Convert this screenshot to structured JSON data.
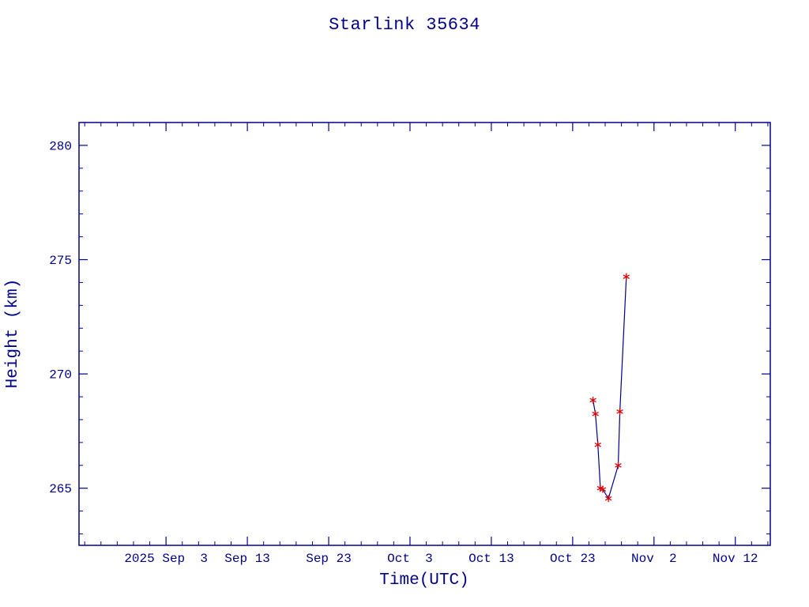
{
  "colors": {
    "background": "#ffffff",
    "axis": "#00008b",
    "text": "#00008b",
    "line": "#00008b",
    "marker": "#dd0000"
  },
  "chart_data": {
    "type": "line",
    "title": "Starlink 35634",
    "xlabel": "Time(UTC)",
    "ylabel": "Height (km)",
    "x_axis_unit": "days relative to first labeled tick (2025 Sep 3)",
    "xlim": [
      -10.7,
      74.3
    ],
    "ylim": [
      262.5,
      281.0
    ],
    "grid": false,
    "legend": false,
    "x_ticks": {
      "minor_step": 2,
      "major": [
        {
          "day": 0,
          "label": "2025 Sep  3"
        },
        {
          "day": 10,
          "label": "Sep 13"
        },
        {
          "day": 20,
          "label": "Sep 23"
        },
        {
          "day": 30,
          "label": "Oct  3"
        },
        {
          "day": 40,
          "label": "Oct 13"
        },
        {
          "day": 50,
          "label": "Oct 23"
        },
        {
          "day": 60,
          "label": "Nov  2"
        },
        {
          "day": 70,
          "label": "Nov 12"
        }
      ]
    },
    "y_ticks": {
      "minor_step": 1,
      "major": [
        {
          "value": 265,
          "label": "265"
        },
        {
          "value": 270,
          "label": "270"
        },
        {
          "value": 275,
          "label": "275"
        },
        {
          "value": 280,
          "label": "280"
        }
      ]
    },
    "series": [
      {
        "name": "height",
        "marker": "asterisk",
        "points": [
          [
            52.5,
            268.85
          ],
          [
            52.8,
            268.25
          ],
          [
            53.1,
            266.9
          ],
          [
            53.4,
            265.0
          ],
          [
            53.7,
            264.95
          ],
          [
            54.4,
            264.55
          ],
          [
            55.6,
            266.0
          ],
          [
            55.8,
            268.35
          ],
          [
            56.6,
            274.25
          ]
        ]
      }
    ]
  }
}
